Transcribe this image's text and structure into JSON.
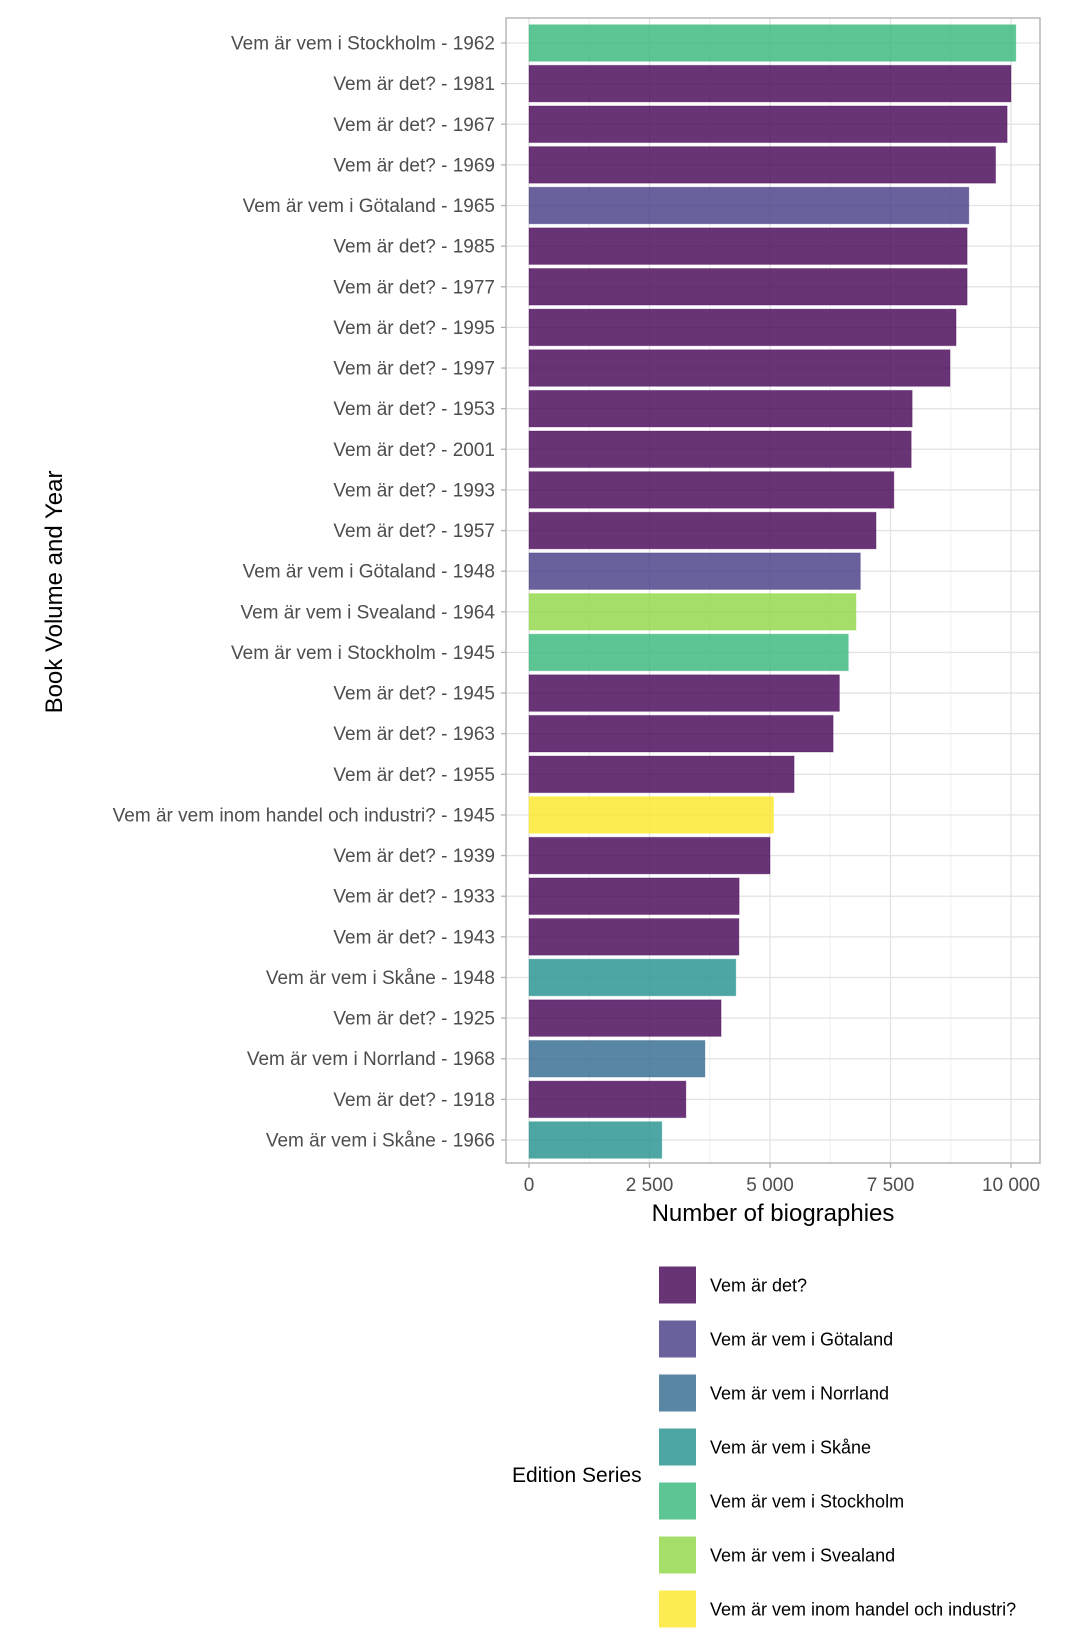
{
  "chart_data": {
    "type": "bar",
    "orientation": "horizontal",
    "title": "",
    "xlabel": "Number of biographies",
    "ylabel": "Book Volume and Year",
    "xlim": [
      0,
      10600
    ],
    "xticks": [
      0,
      2500,
      5000,
      7500,
      10000
    ],
    "xtick_labels": [
      "0",
      "2 500",
      "5 000",
      "7 500",
      "10 000"
    ],
    "grid": true,
    "legend": {
      "title": "Edition Series",
      "position": "bottom",
      "entries": [
        {
          "name": "Vem är det?",
          "color": "#440154"
        },
        {
          "name": "Vem är vem i Götaland",
          "color": "#443A83"
        },
        {
          "name": "Vem är vem i Norrland",
          "color": "#31688E"
        },
        {
          "name": "Vem är vem i Skåne",
          "color": "#21908C"
        },
        {
          "name": "Vem är vem i Stockholm",
          "color": "#35B779"
        },
        {
          "name": "Vem är vem i Svealand",
          "color": "#8FD744"
        },
        {
          "name": "Vem är vem inom handel och industri?",
          "color": "#FDE725"
        }
      ]
    },
    "bar_opacity": 0.8,
    "categories": [
      "Vem är vem i Stockholm - 1962",
      "Vem är det? - 1981",
      "Vem är det? - 1967",
      "Vem är det? - 1969",
      "Vem är vem i Götaland - 1965",
      "Vem är det? - 1985",
      "Vem är det? - 1977",
      "Vem är det? - 1995",
      "Vem är det? - 1997",
      "Vem är det? - 1953",
      "Vem är det? - 2001",
      "Vem är det? - 1993",
      "Vem är det? - 1957",
      "Vem är vem i Götaland - 1948",
      "Vem är vem i Svealand - 1964",
      "Vem är vem i Stockholm - 1945",
      "Vem är det? - 1945",
      "Vem är det? - 1963",
      "Vem är det? - 1955",
      "Vem är vem inom handel och industri? - 1945",
      "Vem är det? - 1939",
      "Vem är det? - 1933",
      "Vem är det? - 1943",
      "Vem är vem i Skåne - 1948",
      "Vem är det? - 1925",
      "Vem är vem i Norrland - 1968",
      "Vem är det? - 1918",
      "Vem är vem i Skåne - 1966"
    ],
    "series_of_bar": [
      "Vem är vem i Stockholm",
      "Vem är det?",
      "Vem är det?",
      "Vem är det?",
      "Vem är vem i Götaland",
      "Vem är det?",
      "Vem är det?",
      "Vem är det?",
      "Vem är det?",
      "Vem är det?",
      "Vem är det?",
      "Vem är det?",
      "Vem är det?",
      "Vem är vem i Götaland",
      "Vem är vem i Svealand",
      "Vem är vem i Stockholm",
      "Vem är det?",
      "Vem är det?",
      "Vem är det?",
      "Vem är vem inom handel och industri?",
      "Vem är det?",
      "Vem är det?",
      "Vem är det?",
      "Vem är vem i Skåne",
      "Vem är det?",
      "Vem är vem i Norrland",
      "Vem är det?",
      "Vem är vem i Skåne"
    ],
    "values": [
      10100,
      10000,
      9920,
      9680,
      9125,
      9090,
      9090,
      8860,
      8735,
      7950,
      7930,
      7570,
      7200,
      6875,
      6785,
      6625,
      6440,
      6310,
      5500,
      5075,
      5000,
      4360,
      4355,
      4290,
      3985,
      3650,
      3255,
      2755
    ]
  }
}
